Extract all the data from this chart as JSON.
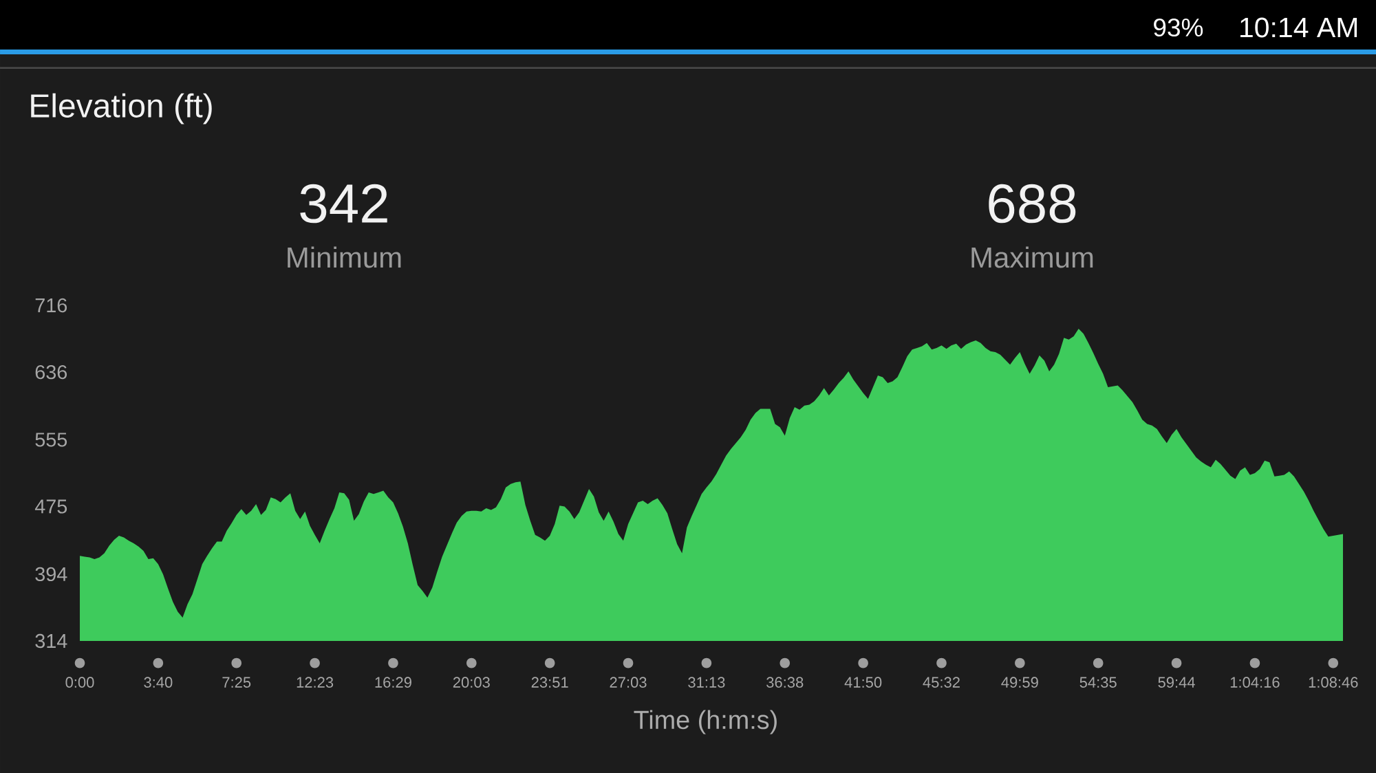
{
  "chart_data": {
    "type": "area",
    "title": "Elevation (ft)",
    "xlabel": "Time (h:m:s)",
    "annotations": [
      "342",
      "Minimum",
      "688",
      "Maximum",
      "93%",
      "10:14 AM"
    ],
    "categories": [
      "0:00",
      null,
      null,
      null,
      null,
      null,
      null,
      null,
      null,
      null,
      null,
      null,
      null,
      null,
      null,
      null,
      "3:40",
      null,
      null,
      null,
      null,
      null,
      null,
      null,
      null,
      null,
      null,
      null,
      null,
      null,
      null,
      null,
      "7:25",
      null,
      null,
      null,
      null,
      null,
      null,
      null,
      null,
      null,
      null,
      null,
      null,
      null,
      null,
      null,
      "12:23",
      null,
      null,
      null,
      null,
      null,
      null,
      null,
      null,
      null,
      null,
      null,
      null,
      null,
      null,
      null,
      "16:29",
      null,
      null,
      null,
      null,
      null,
      null,
      null,
      null,
      null,
      null,
      null,
      null,
      null,
      null,
      null,
      "20:03",
      null,
      null,
      null,
      null,
      null,
      null,
      null,
      null,
      null,
      null,
      null,
      null,
      null,
      null,
      null,
      "23:51",
      null,
      null,
      null,
      null,
      null,
      null,
      null,
      null,
      null,
      null,
      null,
      null,
      null,
      null,
      null,
      "27:03",
      null,
      null,
      null,
      null,
      null,
      null,
      null,
      null,
      null,
      null,
      null,
      null,
      null,
      null,
      null,
      "31:13",
      null,
      null,
      null,
      null,
      null,
      null,
      null,
      null,
      null,
      null,
      null,
      null,
      null,
      null,
      null,
      "36:38",
      null,
      null,
      null,
      null,
      null,
      null,
      null,
      null,
      null,
      null,
      null,
      null,
      null,
      null,
      null,
      "41:50",
      null,
      null,
      null,
      null,
      null,
      null,
      null,
      null,
      null,
      null,
      null,
      null,
      null,
      null,
      null,
      "45:32",
      null,
      null,
      null,
      null,
      null,
      null,
      null,
      null,
      null,
      null,
      null,
      null,
      null,
      null,
      null,
      "49:59",
      null,
      null,
      null,
      null,
      null,
      null,
      null,
      null,
      null,
      null,
      null,
      null,
      null,
      null,
      null,
      "54:35",
      null,
      null,
      null,
      null,
      null,
      null,
      null,
      null,
      null,
      null,
      null,
      null,
      null,
      null,
      null,
      "59:44",
      null,
      null,
      null,
      null,
      null,
      null,
      null,
      null,
      null,
      null,
      null,
      null,
      null,
      null,
      null,
      "1:04:16",
      null,
      null,
      null,
      null,
      null,
      null,
      null,
      null,
      null,
      null,
      null,
      null,
      null,
      null,
      null,
      "1:08:46",
      null,
      null
    ],
    "values": [
      416,
      415,
      414,
      412,
      414,
      419,
      428,
      435,
      440,
      438,
      434,
      431,
      427,
      422,
      412,
      413,
      406,
      394,
      377,
      361,
      349,
      342,
      358,
      370,
      388,
      406,
      416,
      425,
      433,
      433,
      446,
      455,
      465,
      472,
      465,
      470,
      478,
      465,
      471,
      486,
      484,
      480,
      486,
      491,
      470,
      460,
      469,
      452,
      441,
      431,
      446,
      460,
      473,
      492,
      491,
      483,
      458,
      466,
      481,
      492,
      490,
      492,
      494,
      486,
      480,
      467,
      451,
      431,
      405,
      381,
      374,
      366,
      378,
      397,
      415,
      429,
      443,
      456,
      464,
      469,
      470,
      470,
      469,
      473,
      471,
      474,
      484,
      498,
      502,
      504,
      505,
      477,
      458,
      441,
      438,
      434,
      440,
      454,
      476,
      475,
      469,
      460,
      468,
      482,
      496,
      487,
      468,
      458,
      469,
      457,
      442,
      434,
      454,
      467,
      480,
      482,
      478,
      482,
      485,
      477,
      467,
      448,
      430,
      419,
      450,
      464,
      477,
      490,
      498,
      505,
      514,
      525,
      536,
      544,
      551,
      558,
      567,
      579,
      587,
      592,
      592,
      592,
      574,
      570,
      560,
      581,
      594,
      591,
      596,
      597,
      601,
      608,
      617,
      608,
      615,
      623,
      629,
      637,
      627,
      619,
      611,
      604,
      618,
      632,
      630,
      623,
      625,
      630,
      642,
      655,
      663,
      665,
      667,
      671,
      663,
      665,
      668,
      664,
      668,
      670,
      664,
      669,
      672,
      674,
      671,
      665,
      661,
      660,
      657,
      651,
      645,
      653,
      660,
      646,
      634,
      644,
      656,
      650,
      637,
      645,
      658,
      677,
      675,
      679,
      688,
      682,
      671,
      659,
      646,
      634,
      618,
      619,
      620,
      614,
      607,
      600,
      590,
      579,
      574,
      572,
      568,
      559,
      551,
      561,
      568,
      558,
      550,
      542,
      534,
      529,
      525,
      522,
      531,
      526,
      519,
      512,
      508,
      518,
      522,
      513,
      515,
      520,
      530,
      528,
      511,
      512,
      513,
      517,
      511,
      502,
      493,
      482,
      470,
      459,
      448,
      439,
      440,
      441,
      442
    ],
    "color": "#3ecb5c",
    "ylim": [
      314,
      716
    ],
    "yticks": [
      314,
      394,
      475,
      555,
      636,
      716
    ]
  }
}
